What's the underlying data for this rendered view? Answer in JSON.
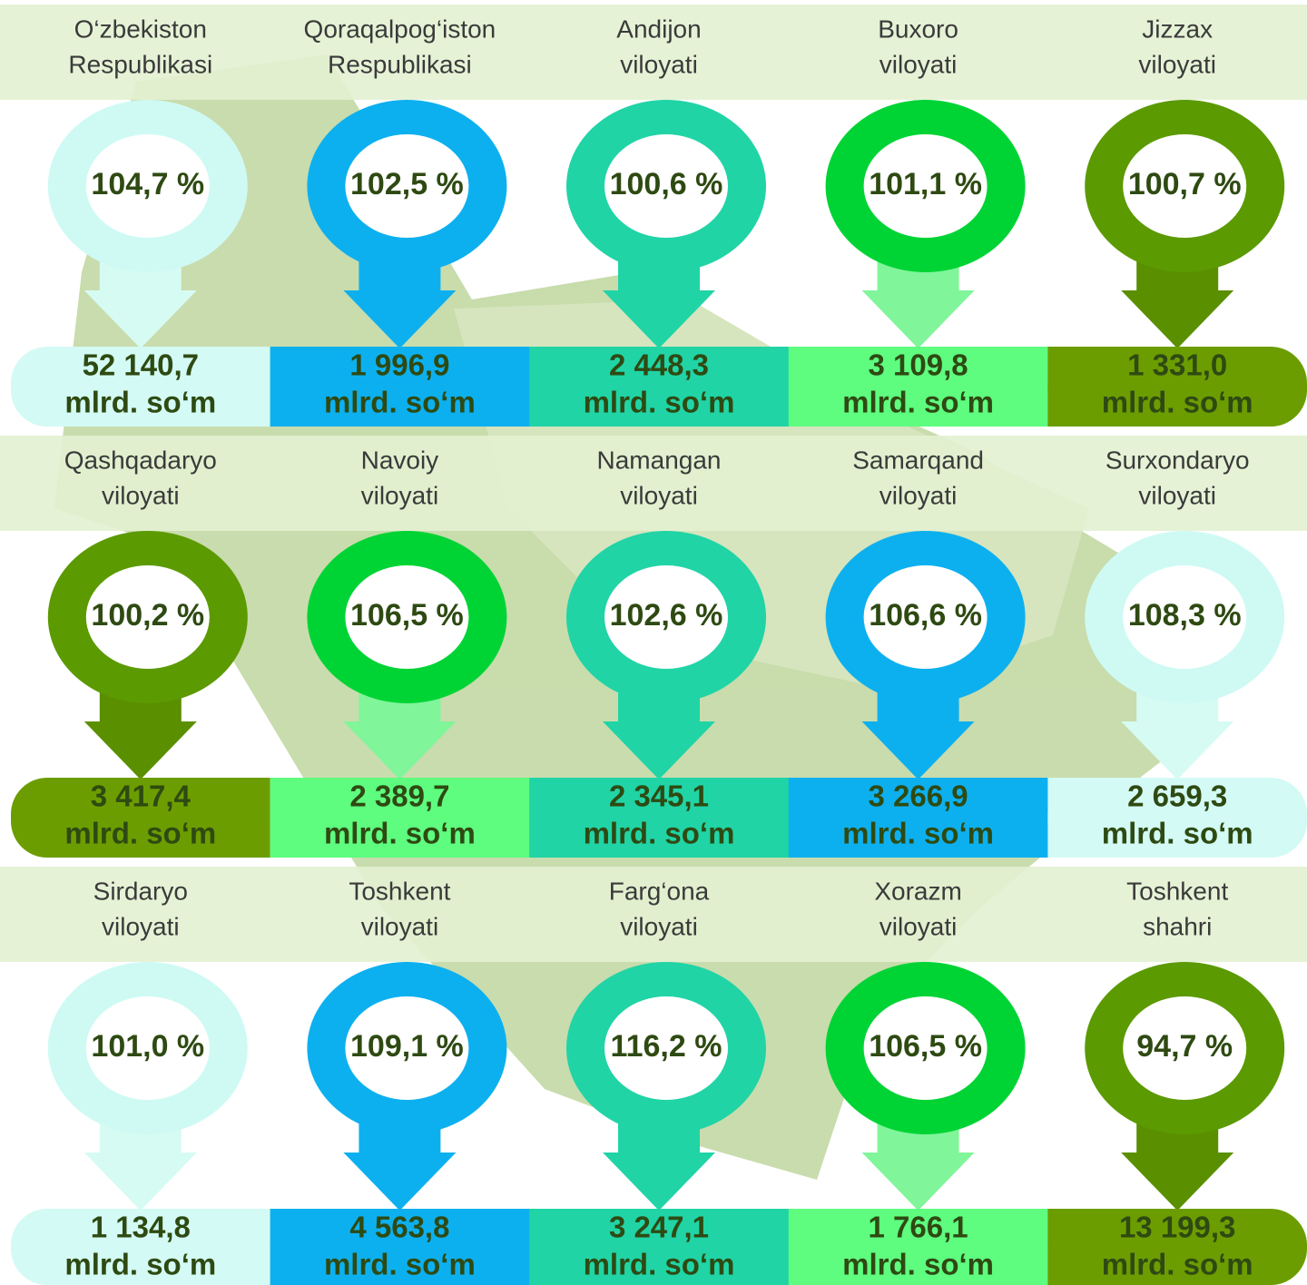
{
  "unit": "mlrd. so‘m",
  "regions": [
    {
      "name": [
        "O‘zbekiston",
        "Respublikasi"
      ],
      "percent": "104,7 %",
      "value": "52 140,7"
    },
    {
      "name": [
        "Qoraqalpog‘iston",
        "Respublikasi"
      ],
      "percent": "102,5 %",
      "value": "1 996,9"
    },
    {
      "name": [
        "Andijon",
        "viloyati"
      ],
      "percent": "100,6 %",
      "value": "2 448,3"
    },
    {
      "name": [
        "Buxoro",
        "viloyati"
      ],
      "percent": "101,1 %",
      "value": "3 109,8"
    },
    {
      "name": [
        "Jizzax",
        "viloyati"
      ],
      "percent": "100,7 %",
      "value": "1 331,0"
    },
    {
      "name": [
        "Qashqadaryo",
        "viloyati"
      ],
      "percent": "100,2 %",
      "value": "3 417,4"
    },
    {
      "name": [
        "Navoiy",
        "viloyati"
      ],
      "percent": "106,5 %",
      "value": "2 389,7"
    },
    {
      "name": [
        "Namangan",
        "viloyati"
      ],
      "percent": "102,6 %",
      "value": "2 345,1"
    },
    {
      "name": [
        "Samarqand",
        "viloyati"
      ],
      "percent": "106,6 %",
      "value": "3 266,9"
    },
    {
      "name": [
        "Surxondaryo",
        "viloyati"
      ],
      "percent": "108,3 %",
      "value": "2 659,3"
    },
    {
      "name": [
        "Sirdaryo",
        "viloyati"
      ],
      "percent": "101,0 %",
      "value": "1 134,8"
    },
    {
      "name": [
        "Toshkent",
        "viloyati"
      ],
      "percent": "109,1 %",
      "value": "4 563,8"
    },
    {
      "name": [
        "Farg‘ona",
        "viloyati"
      ],
      "percent": "116,2 %",
      "value": "3 247,1"
    },
    {
      "name": [
        "Xorazm",
        "viloyati"
      ],
      "percent": "106,5 %",
      "value": "1 766,1"
    },
    {
      "name": [
        "Toshkent",
        "shahri"
      ],
      "percent": "94,7 %",
      "value": "13 199,3"
    }
  ]
}
